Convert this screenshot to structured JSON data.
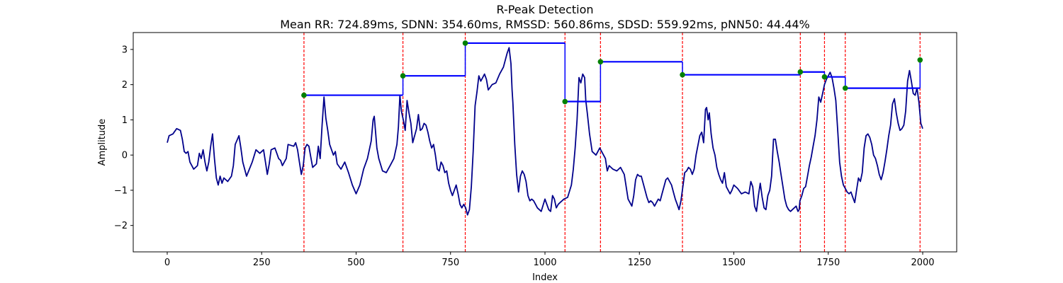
{
  "chart_data": {
    "type": "line",
    "title": "R-Peak Detection",
    "subtitle": "Mean RR: 724.89ms, SDNN: 354.60ms, RMSSD: 560.86ms, SDSD: 559.92ms, pNN50: 44.44%",
    "xlabel": "Index",
    "ylabel": "Amplitude",
    "xlim": [
      -90,
      2090
    ],
    "ylim": [
      -2.75,
      3.48
    ],
    "xticks": [
      0,
      250,
      500,
      750,
      1000,
      1250,
      1500,
      1750,
      2000
    ],
    "yticks": [
      -2,
      -1,
      0,
      1,
      2,
      3
    ],
    "grid": false,
    "colors": {
      "signal": "#00008b",
      "peak_line": "#ff0000",
      "rr_interval": "#0000ff",
      "peak_marker": "#008000"
    },
    "signal_keypoints": [
      [
        0,
        0.35
      ],
      [
        5,
        0.55
      ],
      [
        15,
        0.6
      ],
      [
        25,
        0.75
      ],
      [
        35,
        0.7
      ],
      [
        40,
        0.45
      ],
      [
        45,
        0.1
      ],
      [
        50,
        0.05
      ],
      [
        55,
        0.1
      ],
      [
        60,
        -0.2
      ],
      [
        70,
        -0.4
      ],
      [
        80,
        -0.3
      ],
      [
        85,
        0.05
      ],
      [
        90,
        -0.1
      ],
      [
        95,
        0.15
      ],
      [
        100,
        -0.2
      ],
      [
        105,
        -0.45
      ],
      [
        110,
        -0.2
      ],
      [
        115,
        0.25
      ],
      [
        120,
        0.6
      ],
      [
        125,
        -0.1
      ],
      [
        130,
        -0.65
      ],
      [
        135,
        -0.85
      ],
      [
        140,
        -0.6
      ],
      [
        145,
        -0.8
      ],
      [
        150,
        -0.65
      ],
      [
        160,
        -0.75
      ],
      [
        170,
        -0.6
      ],
      [
        175,
        -0.3
      ],
      [
        180,
        0.3
      ],
      [
        190,
        0.55
      ],
      [
        195,
        0.2
      ],
      [
        200,
        -0.2
      ],
      [
        210,
        -0.6
      ],
      [
        225,
        -0.2
      ],
      [
        235,
        0.15
      ],
      [
        245,
        0.05
      ],
      [
        255,
        0.15
      ],
      [
        260,
        -0.2
      ],
      [
        265,
        -0.55
      ],
      [
        270,
        -0.25
      ],
      [
        275,
        0.15
      ],
      [
        285,
        0.2
      ],
      [
        290,
        0.05
      ],
      [
        295,
        -0.1
      ],
      [
        300,
        -0.15
      ],
      [
        305,
        -0.3
      ],
      [
        310,
        -0.2
      ],
      [
        315,
        -0.1
      ],
      [
        320,
        0.3
      ],
      [
        335,
        0.25
      ],
      [
        340,
        0.35
      ],
      [
        345,
        0.15
      ],
      [
        350,
        -0.2
      ],
      [
        355,
        -0.55
      ],
      [
        360,
        -0.3
      ],
      [
        365,
        0.2
      ],
      [
        370,
        0.3
      ],
      [
        375,
        0.25
      ],
      [
        380,
        -0.05
      ],
      [
        385,
        -0.35
      ],
      [
        395,
        -0.25
      ],
      [
        400,
        0.25
      ],
      [
        405,
        -0.1
      ],
      [
        410,
        0.85
      ],
      [
        415,
        1.65
      ],
      [
        420,
        1.05
      ],
      [
        425,
        0.7
      ],
      [
        430,
        0.3
      ],
      [
        440,
        0.0
      ],
      [
        445,
        0.1
      ],
      [
        450,
        -0.25
      ],
      [
        460,
        -0.4
      ],
      [
        470,
        -0.2
      ],
      [
        480,
        -0.5
      ],
      [
        490,
        -0.85
      ],
      [
        500,
        -1.1
      ],
      [
        510,
        -0.85
      ],
      [
        520,
        -0.4
      ],
      [
        530,
        -0.1
      ],
      [
        540,
        0.4
      ],
      [
        545,
        1.0
      ],
      [
        548,
        1.1
      ],
      [
        552,
        0.6
      ],
      [
        555,
        0.2
      ],
      [
        560,
        -0.1
      ],
      [
        570,
        -0.45
      ],
      [
        580,
        -0.5
      ],
      [
        590,
        -0.3
      ],
      [
        600,
        -0.1
      ],
      [
        608,
        0.3
      ],
      [
        612,
        0.8
      ],
      [
        616,
        1.7
      ],
      [
        620,
        1.25
      ],
      [
        625,
        1.0
      ],
      [
        630,
        0.7
      ],
      [
        635,
        1.55
      ],
      [
        640,
        1.2
      ],
      [
        645,
        0.9
      ],
      [
        650,
        0.35
      ],
      [
        660,
        0.75
      ],
      [
        665,
        1.15
      ],
      [
        670,
        0.7
      ],
      [
        675,
        0.75
      ],
      [
        680,
        0.9
      ],
      [
        685,
        0.85
      ],
      [
        690,
        0.65
      ],
      [
        695,
        0.4
      ],
      [
        700,
        0.2
      ],
      [
        705,
        0.3
      ],
      [
        710,
        0.0
      ],
      [
        715,
        -0.4
      ],
      [
        720,
        -0.45
      ],
      [
        725,
        -0.2
      ],
      [
        730,
        -0.3
      ],
      [
        735,
        -0.5
      ],
      [
        740,
        -0.45
      ],
      [
        745,
        -0.8
      ],
      [
        750,
        -1.0
      ],
      [
        755,
        -1.15
      ],
      [
        760,
        -1.0
      ],
      [
        765,
        -0.85
      ],
      [
        770,
        -1.1
      ],
      [
        775,
        -1.4
      ],
      [
        780,
        -1.5
      ],
      [
        785,
        -1.4
      ],
      [
        790,
        -1.5
      ],
      [
        795,
        -1.7
      ],
      [
        800,
        -1.55
      ],
      [
        805,
        -0.9
      ],
      [
        810,
        0.1
      ],
      [
        815,
        1.4
      ],
      [
        820,
        1.8
      ],
      [
        825,
        2.25
      ],
      [
        830,
        2.1
      ],
      [
        835,
        2.2
      ],
      [
        840,
        2.3
      ],
      [
        845,
        2.15
      ],
      [
        850,
        1.85
      ],
      [
        860,
        2.0
      ],
      [
        870,
        2.05
      ],
      [
        880,
        2.3
      ],
      [
        890,
        2.5
      ],
      [
        900,
        2.9
      ],
      [
        905,
        3.05
      ],
      [
        910,
        2.6
      ],
      [
        913,
        1.85
      ],
      [
        915,
        1.5
      ],
      [
        920,
        0.3
      ],
      [
        925,
        -0.55
      ],
      [
        930,
        -1.05
      ],
      [
        935,
        -0.6
      ],
      [
        940,
        -0.45
      ],
      [
        945,
        -0.55
      ],
      [
        950,
        -0.75
      ],
      [
        955,
        -1.15
      ],
      [
        960,
        -1.3
      ],
      [
        965,
        -1.25
      ],
      [
        970,
        -1.3
      ],
      [
        975,
        -1.4
      ],
      [
        980,
        -1.5
      ],
      [
        990,
        -1.6
      ],
      [
        1000,
        -1.25
      ],
      [
        1010,
        -1.55
      ],
      [
        1015,
        -1.6
      ],
      [
        1020,
        -1.15
      ],
      [
        1025,
        -1.25
      ],
      [
        1030,
        -1.5
      ],
      [
        1035,
        -1.4
      ],
      [
        1040,
        -1.35
      ],
      [
        1050,
        -1.25
      ],
      [
        1060,
        -1.2
      ],
      [
        1070,
        -0.85
      ],
      [
        1075,
        -0.4
      ],
      [
        1080,
        0.2
      ],
      [
        1085,
        1.0
      ],
      [
        1090,
        2.2
      ],
      [
        1095,
        2.05
      ],
      [
        1100,
        2.3
      ],
      [
        1105,
        2.2
      ],
      [
        1108,
        1.55
      ],
      [
        1112,
        1.2
      ],
      [
        1118,
        0.6
      ],
      [
        1125,
        0.1
      ],
      [
        1135,
        0.0
      ],
      [
        1145,
        0.2
      ],
      [
        1150,
        0.1
      ],
      [
        1160,
        -0.1
      ],
      [
        1165,
        -0.45
      ],
      [
        1170,
        -0.3
      ],
      [
        1180,
        -0.4
      ],
      [
        1190,
        -0.45
      ],
      [
        1200,
        -0.35
      ],
      [
        1210,
        -0.55
      ],
      [
        1220,
        -1.25
      ],
      [
        1230,
        -1.45
      ],
      [
        1235,
        -1.15
      ],
      [
        1240,
        -0.7
      ],
      [
        1245,
        -0.55
      ],
      [
        1250,
        -0.6
      ],
      [
        1255,
        -0.6
      ],
      [
        1260,
        -0.8
      ],
      [
        1270,
        -1.2
      ],
      [
        1275,
        -1.35
      ],
      [
        1280,
        -1.3
      ],
      [
        1285,
        -1.35
      ],
      [
        1290,
        -1.45
      ],
      [
        1300,
        -1.25
      ],
      [
        1305,
        -1.3
      ],
      [
        1310,
        -1.1
      ],
      [
        1320,
        -0.7
      ],
      [
        1325,
        -0.65
      ],
      [
        1330,
        -0.75
      ],
      [
        1335,
        -0.85
      ],
      [
        1340,
        -1.05
      ],
      [
        1345,
        -1.25
      ],
      [
        1350,
        -1.4
      ],
      [
        1355,
        -1.55
      ],
      [
        1360,
        -1.3
      ],
      [
        1365,
        -0.9
      ],
      [
        1370,
        -0.5
      ],
      [
        1375,
        -0.45
      ],
      [
        1380,
        -0.35
      ],
      [
        1385,
        -0.4
      ],
      [
        1390,
        -0.55
      ],
      [
        1395,
        -0.4
      ],
      [
        1400,
        0.0
      ],
      [
        1410,
        0.55
      ],
      [
        1415,
        0.65
      ],
      [
        1420,
        0.35
      ],
      [
        1425,
        1.3
      ],
      [
        1428,
        1.35
      ],
      [
        1432,
        1.0
      ],
      [
        1435,
        1.2
      ],
      [
        1440,
        0.6
      ],
      [
        1445,
        0.2
      ],
      [
        1450,
        0.0
      ],
      [
        1455,
        -0.35
      ],
      [
        1460,
        -0.55
      ],
      [
        1465,
        -0.7
      ],
      [
        1470,
        -0.8
      ],
      [
        1475,
        -0.5
      ],
      [
        1480,
        -0.9
      ],
      [
        1490,
        -1.1
      ],
      [
        1495,
        -1.0
      ],
      [
        1500,
        -0.85
      ],
      [
        1510,
        -0.95
      ],
      [
        1520,
        -1.1
      ],
      [
        1530,
        -1.05
      ],
      [
        1540,
        -1.1
      ],
      [
        1545,
        -0.75
      ],
      [
        1550,
        -0.9
      ],
      [
        1555,
        -1.45
      ],
      [
        1560,
        -1.6
      ],
      [
        1565,
        -1.15
      ],
      [
        1570,
        -0.8
      ],
      [
        1575,
        -1.2
      ],
      [
        1580,
        -1.5
      ],
      [
        1585,
        -1.55
      ],
      [
        1590,
        -1.15
      ],
      [
        1595,
        -1.0
      ],
      [
        1600,
        -0.6
      ],
      [
        1605,
        0.45
      ],
      [
        1610,
        0.45
      ],
      [
        1615,
        0.1
      ],
      [
        1620,
        -0.2
      ],
      [
        1625,
        -0.55
      ],
      [
        1630,
        -0.9
      ],
      [
        1635,
        -1.25
      ],
      [
        1640,
        -1.45
      ],
      [
        1645,
        -1.55
      ],
      [
        1650,
        -1.6
      ],
      [
        1655,
        -1.55
      ],
      [
        1660,
        -1.5
      ],
      [
        1665,
        -1.45
      ],
      [
        1668,
        -1.55
      ],
      [
        1670,
        -1.6
      ],
      [
        1673,
        -1.55
      ],
      [
        1675,
        -1.3
      ],
      [
        1680,
        -1.15
      ],
      [
        1685,
        -0.95
      ],
      [
        1690,
        -0.9
      ],
      [
        1695,
        -0.6
      ],
      [
        1700,
        -0.3
      ],
      [
        1705,
        -0.05
      ],
      [
        1710,
        0.25
      ],
      [
        1715,
        0.55
      ],
      [
        1720,
        1.0
      ],
      [
        1725,
        1.65
      ],
      [
        1730,
        1.5
      ],
      [
        1735,
        1.75
      ],
      [
        1740,
        2.0
      ],
      [
        1745,
        2.15
      ],
      [
        1750,
        2.25
      ],
      [
        1755,
        2.35
      ],
      [
        1760,
        2.2
      ],
      [
        1765,
        1.9
      ],
      [
        1770,
        1.55
      ],
      [
        1775,
        0.7
      ],
      [
        1780,
        -0.2
      ],
      [
        1785,
        -0.6
      ],
      [
        1790,
        -0.85
      ],
      [
        1795,
        -0.95
      ],
      [
        1800,
        -1.05
      ],
      [
        1805,
        -1.1
      ],
      [
        1810,
        -1.05
      ],
      [
        1815,
        -1.2
      ],
      [
        1820,
        -1.35
      ],
      [
        1825,
        -1.0
      ],
      [
        1830,
        -0.65
      ],
      [
        1835,
        -0.75
      ],
      [
        1840,
        -0.5
      ],
      [
        1845,
        0.2
      ],
      [
        1850,
        0.55
      ],
      [
        1855,
        0.6
      ],
      [
        1860,
        0.5
      ],
      [
        1865,
        0.3
      ],
      [
        1870,
        0.0
      ],
      [
        1875,
        -0.1
      ],
      [
        1880,
        -0.3
      ],
      [
        1885,
        -0.55
      ],
      [
        1890,
        -0.7
      ],
      [
        1895,
        -0.5
      ],
      [
        1900,
        -0.2
      ],
      [
        1905,
        0.15
      ],
      [
        1910,
        0.55
      ],
      [
        1915,
        0.85
      ],
      [
        1920,
        1.45
      ],
      [
        1925,
        1.6
      ],
      [
        1930,
        1.2
      ],
      [
        1935,
        0.9
      ],
      [
        1940,
        0.7
      ],
      [
        1945,
        0.75
      ],
      [
        1950,
        0.85
      ],
      [
        1955,
        1.25
      ],
      [
        1960,
        2.1
      ],
      [
        1965,
        2.4
      ],
      [
        1970,
        2.1
      ],
      [
        1975,
        1.75
      ],
      [
        1980,
        1.7
      ],
      [
        1985,
        1.9
      ],
      [
        1990,
        1.5
      ],
      [
        1995,
        0.9
      ],
      [
        2000,
        0.75
      ]
    ],
    "r_peaks": [
      {
        "x": 362,
        "y": 1.7
      },
      {
        "x": 624,
        "y": 2.25
      },
      {
        "x": 789,
        "y": 3.18
      },
      {
        "x": 1053,
        "y": 1.52
      },
      {
        "x": 1147,
        "y": 2.65
      },
      {
        "x": 1364,
        "y": 2.28
      },
      {
        "x": 1676,
        "y": 2.36
      },
      {
        "x": 1740,
        "y": 2.22
      },
      {
        "x": 1795,
        "y": 1.9
      },
      {
        "x": 1993,
        "y": 2.7
      }
    ]
  }
}
